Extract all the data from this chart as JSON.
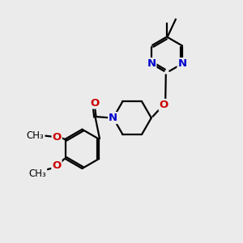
{
  "background_color": "#ebebeb",
  "bond_color": "#000000",
  "nitrogen_color": "#0000cc",
  "oxygen_color": "#cc0000",
  "bond_width": 1.6,
  "figsize": [
    3.0,
    3.0
  ],
  "dpi": 100,
  "xlim": [
    0,
    10
  ],
  "ylim": [
    0,
    10
  ]
}
